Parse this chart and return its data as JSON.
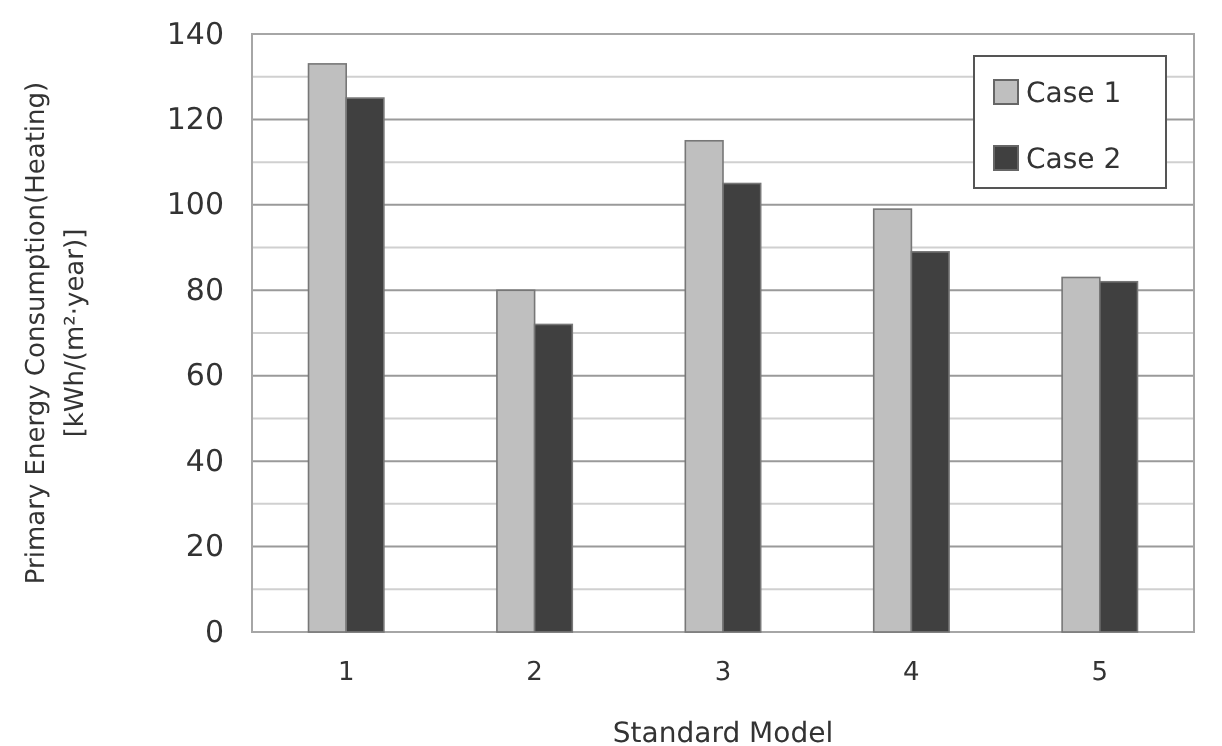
{
  "chart_data": {
    "type": "bar",
    "xlabel": "Standard Model",
    "ylabel": "Primary Energy Consumption(Heating)\n[kWh/(m²·year)]",
    "categories": [
      "1",
      "2",
      "3",
      "4",
      "5"
    ],
    "series": [
      {
        "name": "Case 1",
        "color": "#bfbfbf",
        "values": [
          133,
          80,
          115,
          99,
          83
        ]
      },
      {
        "name": "Case 2",
        "color": "#404040",
        "values": [
          125,
          72,
          105,
          89,
          82
        ]
      }
    ],
    "ylim": [
      0,
      140
    ],
    "yticks": [
      0,
      {
        "value": 10,
        "label": null
      },
      20,
      {
        "value": 30,
        "label": null
      },
      40,
      {
        "value": 50,
        "label": null
      },
      60,
      {
        "value": 70,
        "label": null
      },
      80,
      {
        "value": 90,
        "label": null
      },
      100,
      {
        "value": 110,
        "label": null
      },
      120,
      {
        "value": 130,
        "label": null
      },
      140
    ],
    "grid": "y",
    "legend": "top right"
  }
}
